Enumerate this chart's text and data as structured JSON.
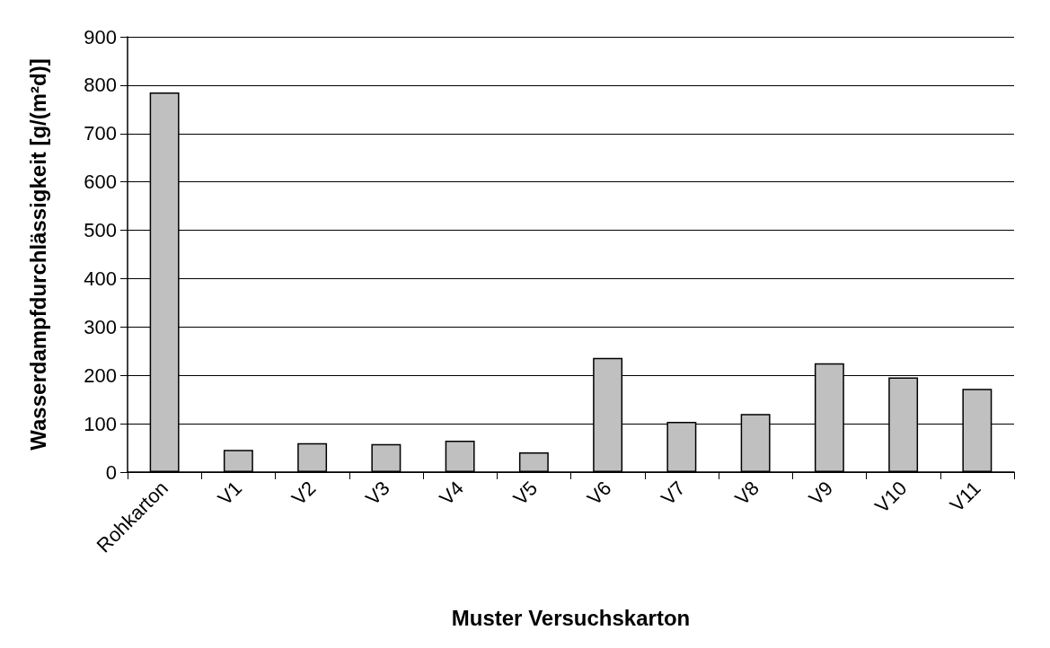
{
  "chart_data": {
    "type": "bar",
    "xlabel": "Muster Versuchskarton",
    "ylabel": "Wasserdampfdurchlässigkeit [g/(m²d)]",
    "categories": [
      "Rohkarton",
      "V1",
      "V2",
      "V3",
      "V4",
      "V5",
      "V6",
      "V7",
      "V8",
      "V9",
      "V10",
      "V11"
    ],
    "values": [
      785,
      46,
      60,
      58,
      65,
      41,
      236,
      104,
      120,
      225,
      196,
      172
    ],
    "color": "#c0c0c0",
    "ylim": [
      0,
      900
    ],
    "yticks": [
      0,
      100,
      200,
      300,
      400,
      500,
      600,
      700,
      800,
      900
    ],
    "grid": "y"
  }
}
